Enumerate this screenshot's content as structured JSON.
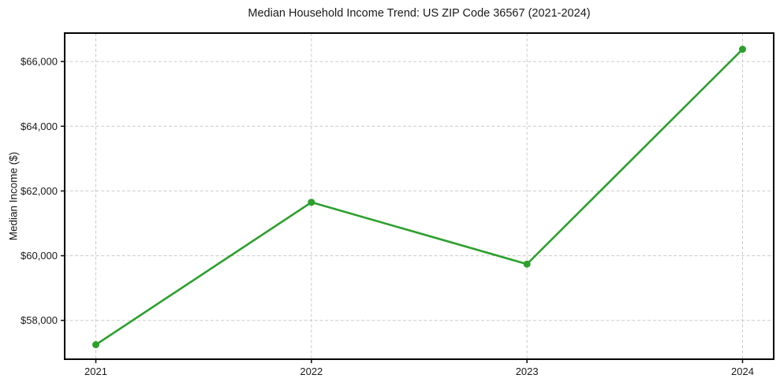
{
  "chart_data": {
    "type": "line",
    "title": "Median Household Income Trend: US ZIP Code 36567 (2021-2024)",
    "xlabel": "",
    "ylabel": "Median Income ($)",
    "categories": [
      "2021",
      "2022",
      "2023",
      "2024"
    ],
    "series": [
      {
        "name": "Median household income",
        "values": [
          57250,
          61650,
          59740,
          66380
        ],
        "color": "#2ca02c",
        "marker": "circle"
      }
    ],
    "yticks": [
      58000,
      60000,
      62000,
      64000,
      66000
    ],
    "ytick_labels": [
      "$58,000",
      "$60,000",
      "$62,000",
      "$64,000",
      "$66,000"
    ],
    "ylim": [
      56800,
      66880
    ],
    "grid": true,
    "grid_style": "dashed",
    "legend": false,
    "background_color": "#ffffff",
    "frame_color": "#000000",
    "gridline_color": "#cccccc",
    "text_color": "#1a1a1a"
  }
}
